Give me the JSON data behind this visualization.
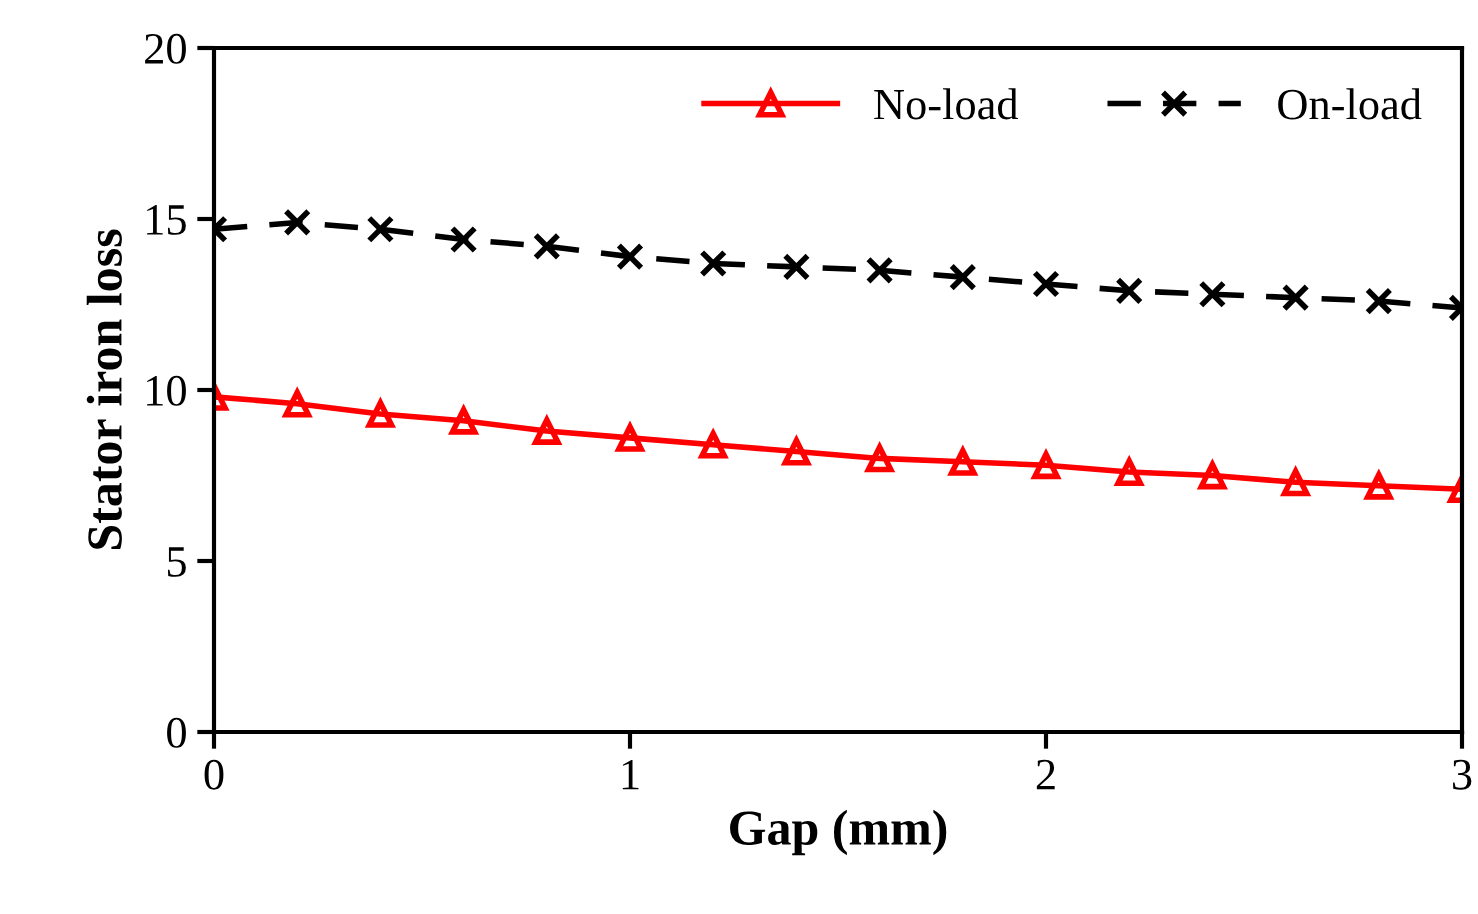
{
  "chart_data": {
    "type": "line",
    "xlabel": "Gap (mm)",
    "ylabel": "Stator iron loss",
    "x": [
      0,
      0.2,
      0.4,
      0.6,
      0.8,
      1.0,
      1.2,
      1.4,
      1.6,
      1.8,
      2.0,
      2.2,
      2.4,
      2.6,
      2.8,
      3.0
    ],
    "series": [
      {
        "name": "No-load",
        "color": "#ff0000",
        "marker": "triangle",
        "line_style": "solid",
        "values": [
          9.8,
          9.6,
          9.3,
          9.1,
          8.8,
          8.6,
          8.4,
          8.2,
          8.0,
          7.9,
          7.8,
          7.6,
          7.5,
          7.3,
          7.2,
          7.1
        ]
      },
      {
        "name": "On-load",
        "color": "#000000",
        "marker": "cross",
        "line_style": "dashed",
        "values": [
          14.7,
          14.9,
          14.7,
          14.4,
          14.2,
          13.9,
          13.7,
          13.6,
          13.5,
          13.3,
          13.1,
          12.9,
          12.8,
          12.7,
          12.6,
          12.4
        ]
      }
    ],
    "xlim": [
      0,
      3
    ],
    "xticks": [
      0,
      1,
      2,
      3
    ],
    "ylim": [
      0,
      20
    ],
    "yticks": [
      0,
      5,
      10,
      15,
      20
    ],
    "grid": false,
    "legend": "top right"
  }
}
